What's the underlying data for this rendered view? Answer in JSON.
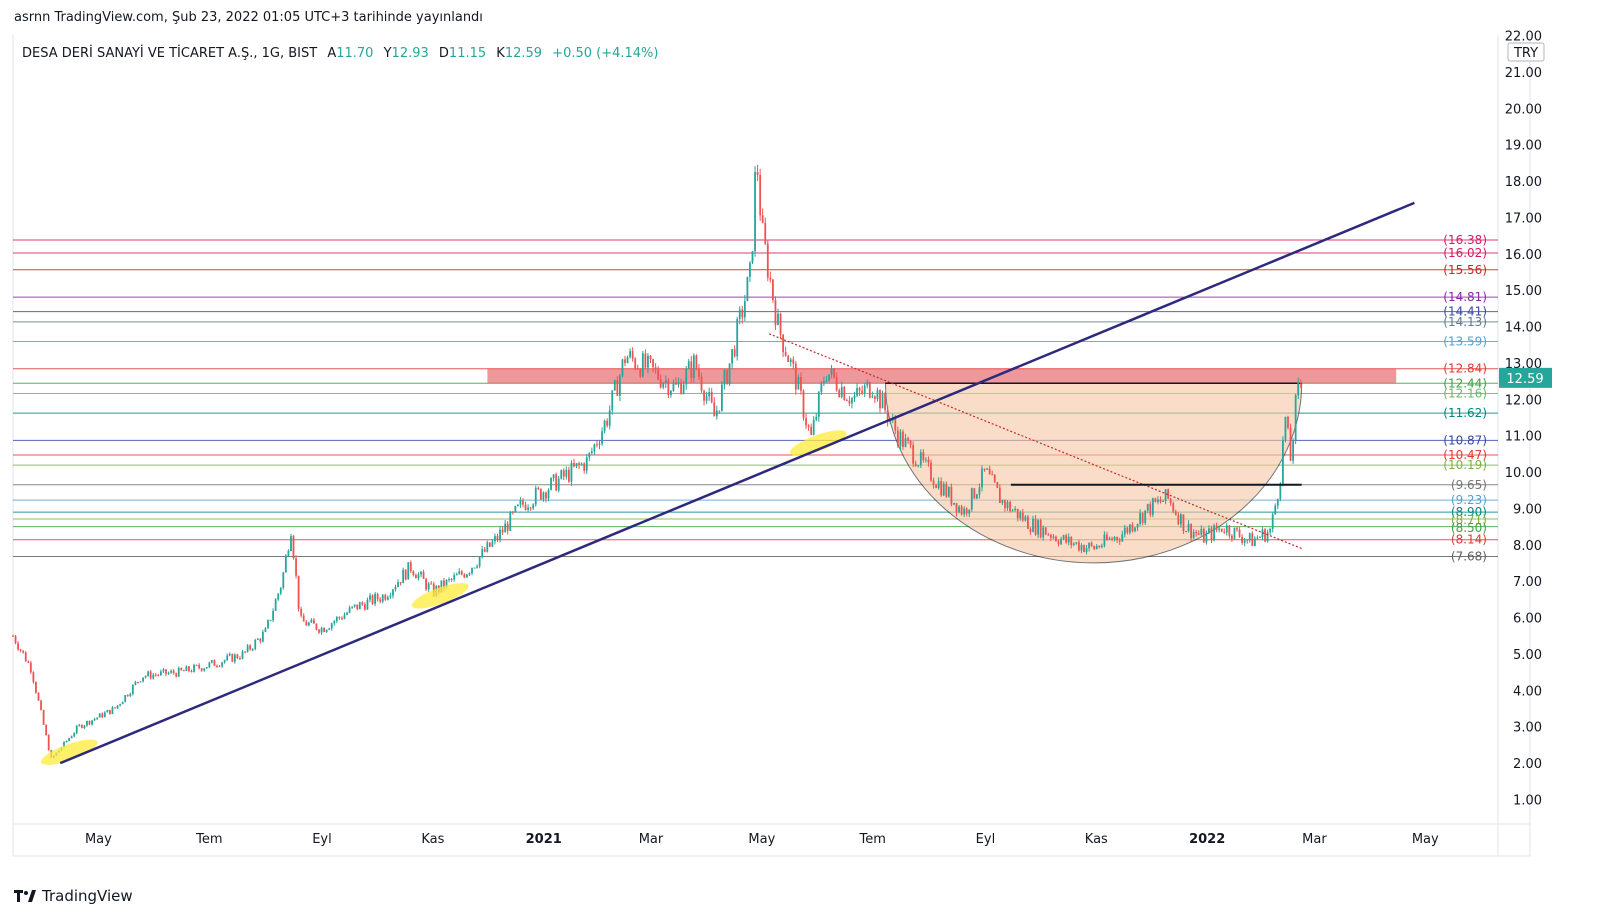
{
  "header": {
    "published": "asrnn TradingView.com, Şub 23, 2022 01:05 UTC+3 tarihinde yayınlandı"
  },
  "footer": {
    "brand": "TradingView"
  },
  "colors": {
    "up": "#26a69a",
    "down": "#ef5350",
    "trendline": "#2d2a7d",
    "zone": "#e0444a",
    "cup_fill": "#f6c7a4",
    "price_badge": "#26a69a",
    "ellipse": "#ffeb3b"
  },
  "chart_data": {
    "type": "candlestick",
    "symbol_label": "DESA DERİ SANAYİ VE TİCARET A.Ş., 1G, BIST",
    "ohlc": {
      "open_label": "A",
      "open": "11.70",
      "high_label": "Y",
      "high": "12.93",
      "low_label": "D",
      "low": "11.15",
      "close_label": "K",
      "close": "12.59",
      "change": "+0.50 (+4.14%)"
    },
    "currency": "TRY",
    "last_price": "12.59",
    "y_axis": {
      "min": 0.5,
      "max": 22.1,
      "ticks": [
        "22.00",
        "21.00",
        "20.00",
        "19.00",
        "18.00",
        "17.00",
        "16.00",
        "15.00",
        "14.00",
        "13.00",
        "12.00",
        "11.00",
        "10.00",
        "9.00",
        "8.00",
        "7.00",
        "6.00",
        "5.00",
        "4.00",
        "3.00",
        "2.00",
        "1.00"
      ]
    },
    "x_axis": {
      "start": "2020-03-15",
      "end": "2022-06-10",
      "ticks": [
        {
          "label": "May",
          "date": "2020-05-01",
          "bold": false
        },
        {
          "label": "Tem",
          "date": "2020-07-01",
          "bold": false
        },
        {
          "label": "Eyl",
          "date": "2020-09-01",
          "bold": false
        },
        {
          "label": "Kas",
          "date": "2020-11-01",
          "bold": false
        },
        {
          "label": "2021",
          "date": "2021-01-01",
          "bold": true
        },
        {
          "label": "Mar",
          "date": "2021-03-01",
          "bold": false
        },
        {
          "label": "May",
          "date": "2021-05-01",
          "bold": false
        },
        {
          "label": "Tem",
          "date": "2021-07-01",
          "bold": false
        },
        {
          "label": "Eyl",
          "date": "2021-09-01",
          "bold": false
        },
        {
          "label": "Kas",
          "date": "2021-11-01",
          "bold": false
        },
        {
          "label": "2022",
          "date": "2022-01-01",
          "bold": true
        },
        {
          "label": "Mar",
          "date": "2022-03-01",
          "bold": false
        },
        {
          "label": "May",
          "date": "2022-05-01",
          "bold": false
        }
      ]
    },
    "price_path": [
      {
        "date": "2020-03-15",
        "price": 5.5
      },
      {
        "date": "2020-03-25",
        "price": 4.6
      },
      {
        "date": "2020-04-05",
        "price": 2.1
      },
      {
        "date": "2020-04-20",
        "price": 3.0
      },
      {
        "date": "2020-05-10",
        "price": 3.5
      },
      {
        "date": "2020-05-25",
        "price": 4.4
      },
      {
        "date": "2020-06-15",
        "price": 4.5
      },
      {
        "date": "2020-07-01",
        "price": 4.7
      },
      {
        "date": "2020-07-20",
        "price": 5.0
      },
      {
        "date": "2020-08-01",
        "price": 5.6
      },
      {
        "date": "2020-08-10",
        "price": 7.0
      },
      {
        "date": "2020-08-15",
        "price": 8.5
      },
      {
        "date": "2020-08-20",
        "price": 5.9
      },
      {
        "date": "2020-09-01",
        "price": 5.7
      },
      {
        "date": "2020-09-20",
        "price": 6.3
      },
      {
        "date": "2020-10-05",
        "price": 6.6
      },
      {
        "date": "2020-10-20",
        "price": 7.4
      },
      {
        "date": "2020-11-01",
        "price": 6.7
      },
      {
        "date": "2020-11-20",
        "price": 7.3
      },
      {
        "date": "2020-12-05",
        "price": 8.1
      },
      {
        "date": "2020-12-20",
        "price": 9.1
      },
      {
        "date": "2021-01-10",
        "price": 9.8
      },
      {
        "date": "2021-01-25",
        "price": 10.3
      },
      {
        "date": "2021-02-05",
        "price": 11.5
      },
      {
        "date": "2021-02-15",
        "price": 13.2
      },
      {
        "date": "2021-03-01",
        "price": 12.8
      },
      {
        "date": "2021-03-15",
        "price": 12.3
      },
      {
        "date": "2021-03-25",
        "price": 13.0
      },
      {
        "date": "2021-04-05",
        "price": 11.5
      },
      {
        "date": "2021-04-15",
        "price": 13.3
      },
      {
        "date": "2021-04-25",
        "price": 15.5
      },
      {
        "date": "2021-04-28",
        "price": 18.8
      },
      {
        "date": "2021-05-01",
        "price": 16.6
      },
      {
        "date": "2021-05-10",
        "price": 14.0
      },
      {
        "date": "2021-05-20",
        "price": 12.5
      },
      {
        "date": "2021-05-28",
        "price": 10.9
      },
      {
        "date": "2021-06-05",
        "price": 12.8
      },
      {
        "date": "2021-06-20",
        "price": 12.0
      },
      {
        "date": "2021-07-01",
        "price": 12.4
      },
      {
        "date": "2021-07-15",
        "price": 11.0
      },
      {
        "date": "2021-08-01",
        "price": 10.0
      },
      {
        "date": "2021-08-20",
        "price": 8.9
      },
      {
        "date": "2021-09-01",
        "price": 10.0
      },
      {
        "date": "2021-09-10",
        "price": 9.2
      },
      {
        "date": "2021-09-25",
        "price": 8.6
      },
      {
        "date": "2021-10-15",
        "price": 8.1
      },
      {
        "date": "2021-10-30",
        "price": 7.9
      },
      {
        "date": "2021-11-15",
        "price": 8.3
      },
      {
        "date": "2021-11-30",
        "price": 9.0
      },
      {
        "date": "2021-12-10",
        "price": 9.3
      },
      {
        "date": "2021-12-20",
        "price": 8.5
      },
      {
        "date": "2021-12-30",
        "price": 8.2
      },
      {
        "date": "2022-01-10",
        "price": 8.5
      },
      {
        "date": "2022-01-25",
        "price": 8.1
      },
      {
        "date": "2022-02-05",
        "price": 8.4
      },
      {
        "date": "2022-02-10",
        "price": 9.8
      },
      {
        "date": "2022-02-13",
        "price": 11.5
      },
      {
        "date": "2022-02-16",
        "price": 10.3
      },
      {
        "date": "2022-02-19",
        "price": 12.0
      },
      {
        "date": "2022-02-22",
        "price": 12.59
      }
    ],
    "levels": [
      {
        "price": 16.38,
        "label": "(16.38)",
        "color": "#d81b60"
      },
      {
        "price": 16.02,
        "label": "(16.02)",
        "color": "#d81b60"
      },
      {
        "price": 15.56,
        "label": "(15.56)",
        "color": "#c62828"
      },
      {
        "price": 14.81,
        "label": "(14.81)",
        "color": "#8e24aa"
      },
      {
        "price": 14.41,
        "label": "(14.41)",
        "color": "#3949ab"
      },
      {
        "price": 14.13,
        "label": "(14.13)",
        "color": "#607d8b"
      },
      {
        "price": 13.59,
        "label": "(13.59)",
        "color": "#4fa3d8"
      },
      {
        "price": 12.84,
        "label": "(12.84)",
        "color": "#e53935"
      },
      {
        "price": 12.44,
        "label": "(12.44)",
        "color": "#43a047"
      },
      {
        "price": 12.16,
        "label": "(12.16)",
        "color": "#66bb6a"
      },
      {
        "price": 11.62,
        "label": "(11.62)",
        "color": "#00897b"
      },
      {
        "price": 10.87,
        "label": "(10.87)",
        "color": "#3949ab"
      },
      {
        "price": 10.47,
        "label": "(10.47)",
        "color": "#e53935"
      },
      {
        "price": 10.19,
        "label": "(10.19)",
        "color": "#7cb342"
      },
      {
        "price": 9.65,
        "label": "(9.65)",
        "color": "#757575"
      },
      {
        "price": 9.23,
        "label": "(9.23)",
        "color": "#4fa3d8"
      },
      {
        "price": 8.9,
        "label": "(8.90)",
        "color": "#00897b"
      },
      {
        "price": 8.71,
        "label": "(8.71)",
        "color": "#7cb342"
      },
      {
        "price": 8.5,
        "label": "(8.50)",
        "color": "#43a047"
      },
      {
        "price": 8.14,
        "label": "(8.14)",
        "color": "#e53935"
      },
      {
        "price": 7.68,
        "label": "(7.68)",
        "color": "#616161"
      }
    ],
    "annotations": {
      "main_trendline": {
        "from": {
          "date": "2020-04-10",
          "price": 2.0
        },
        "to": {
          "date": "2022-04-25",
          "price": 17.4
        }
      },
      "dotted_trendline": {
        "from": {
          "date": "2021-05-05",
          "price": 13.8
        },
        "to": {
          "date": "2022-02-22",
          "price": 7.9
        }
      },
      "resistance_zone": {
        "from_date": "2020-12-01",
        "to_date": "2022-04-15",
        "top": 12.84,
        "bottom": 12.44
      },
      "cup": {
        "from_date": "2021-07-08",
        "to_date": "2022-02-22",
        "rim_price": 12.44,
        "bottom_price": 7.5
      },
      "neckline": {
        "from_date": "2021-09-15",
        "to_date": "2022-02-22",
        "price": 9.65
      },
      "highlights": [
        {
          "date": "2020-04-15",
          "price": 2.3
        },
        {
          "date": "2020-11-05",
          "price": 6.6
        },
        {
          "date": "2021-06-01",
          "price": 10.8
        }
      ]
    }
  }
}
